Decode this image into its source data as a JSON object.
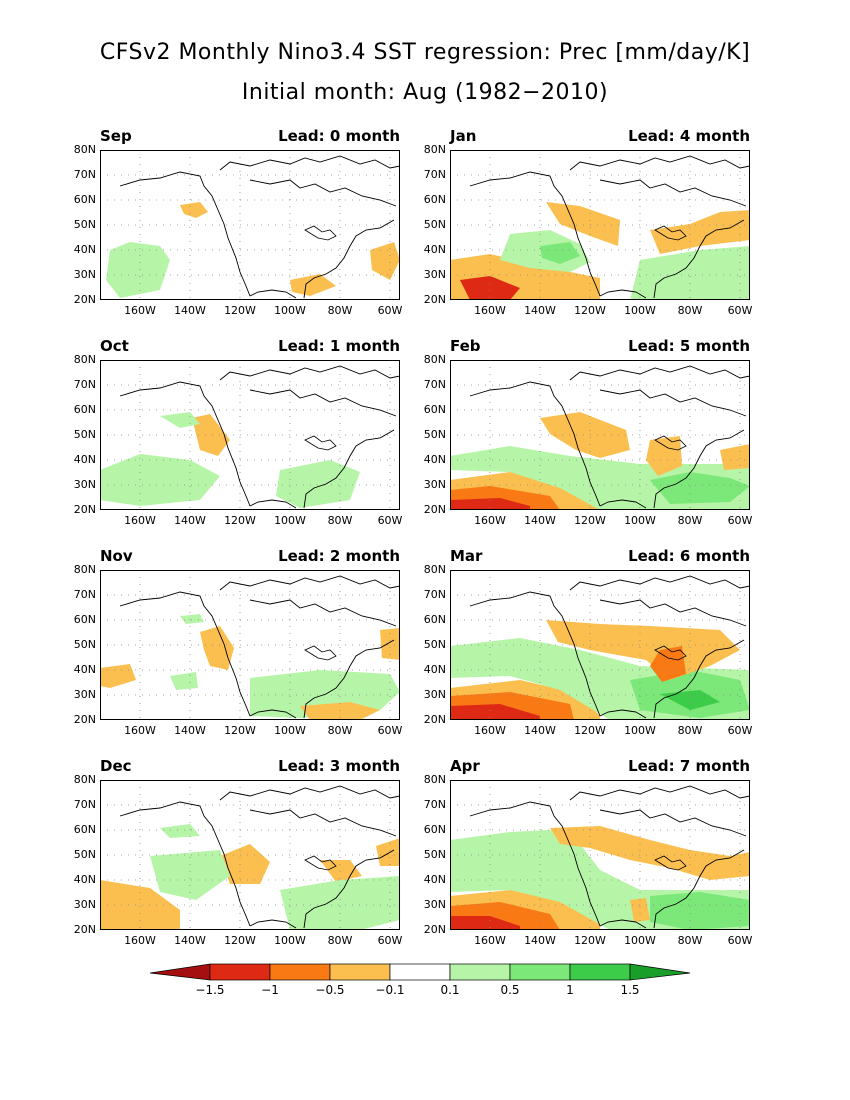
{
  "title_line1": "CFSv2 Monthly Nino3.4 SST regression: Prec [mm/day/K]",
  "title_line2": "Initial month: Aug (1982−2010)",
  "y_ticks": [
    "80N",
    "70N",
    "60N",
    "50N",
    "40N",
    "30N",
    "20N"
  ],
  "x_ticks": [
    "160W",
    "140W",
    "120W",
    "100W",
    "80W",
    "60W"
  ],
  "panels": [
    {
      "month": "Sep",
      "lead": "Lead: 0 month"
    },
    {
      "month": "Jan",
      "lead": "Lead: 4 month"
    },
    {
      "month": "Oct",
      "lead": "Lead: 1 month"
    },
    {
      "month": "Feb",
      "lead": "Lead: 5 month"
    },
    {
      "month": "Nov",
      "lead": "Lead: 2 month"
    },
    {
      "month": "Mar",
      "lead": "Lead: 6 month"
    },
    {
      "month": "Dec",
      "lead": "Lead: 3 month"
    },
    {
      "month": "Apr",
      "lead": "Lead: 7 month"
    }
  ],
  "colorbar": {
    "labels": [
      "−1.5",
      "−1",
      "−0.5",
      "−0.1",
      "0.1",
      "0.5",
      "1",
      "1.5"
    ],
    "colors": [
      "#a50f0f",
      "#de2a14",
      "#f97a14",
      "#fbbf4f",
      "#ffffff",
      "#b6f5a8",
      "#7be879",
      "#3dcc4a",
      "#1a9e2a"
    ]
  },
  "colors": {
    "dry_light": "#fbbf4f",
    "dry_med": "#f97a14",
    "dry_strong": "#de2a14",
    "wet_light": "#b6f5a8",
    "wet_med": "#7be879",
    "wet_strong": "#3dcc4a"
  }
}
